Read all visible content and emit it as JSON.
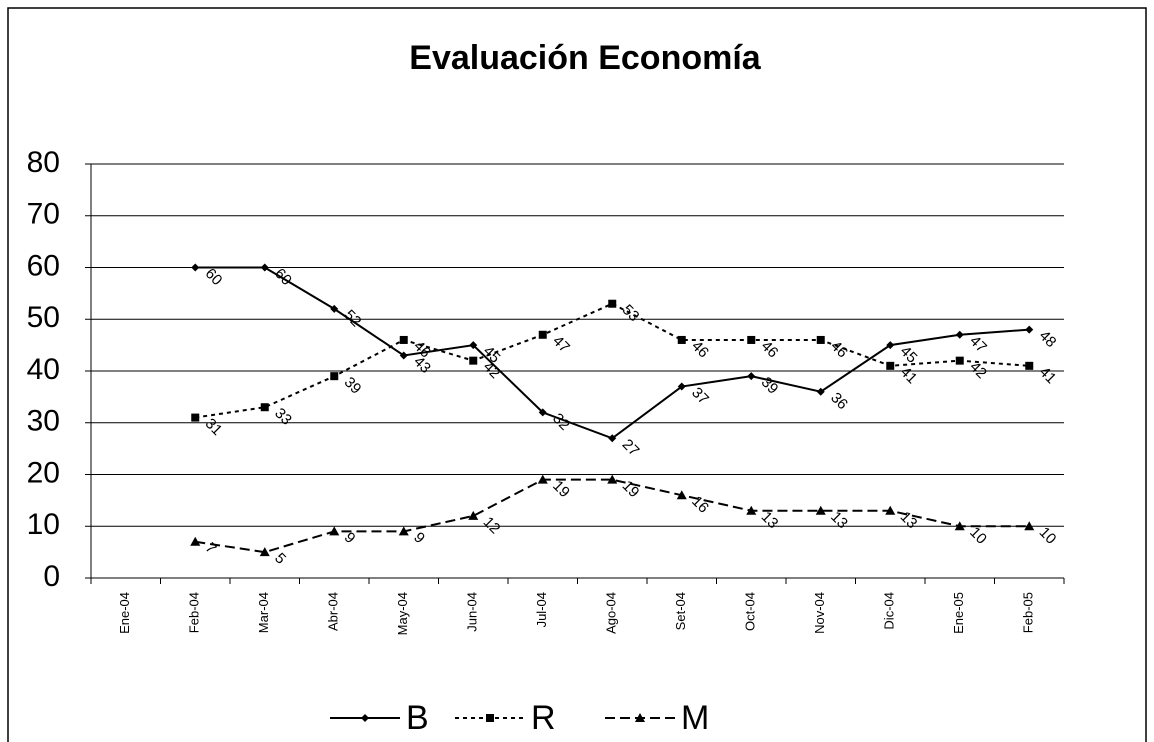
{
  "chart_data": {
    "type": "line",
    "title": "Evaluación Economía",
    "categories": [
      "Ene-04",
      "Feb-04",
      "Mar-04",
      "Abr-04",
      "May-04",
      "Jun-04",
      "Jul-04",
      "Ago-04",
      "Set-04",
      "Oct-04",
      "Nov-04",
      "Dic-04",
      "Ene-05",
      "Feb-05"
    ],
    "series": [
      {
        "name": "B",
        "color": "#000000",
        "style": "solid",
        "marker": "diamond",
        "values": [
          null,
          60,
          60,
          52,
          43,
          45,
          32,
          27,
          37,
          39,
          36,
          45,
          47,
          48
        ]
      },
      {
        "name": "R",
        "color": "#000000",
        "style": "dotted",
        "marker": "square",
        "values": [
          null,
          31,
          33,
          39,
          46,
          42,
          47,
          53,
          46,
          46,
          46,
          41,
          42,
          41
        ]
      },
      {
        "name": "M",
        "color": "#000000",
        "style": "dashed",
        "marker": "triangle",
        "values": [
          null,
          7,
          5,
          9,
          9,
          12,
          19,
          19,
          16,
          13,
          13,
          13,
          10,
          10
        ]
      }
    ],
    "ylim": [
      0,
      80
    ],
    "yticks": [
      0,
      10,
      20,
      30,
      40,
      50,
      60,
      70,
      80
    ],
    "grid": true,
    "legend": "bottom"
  }
}
